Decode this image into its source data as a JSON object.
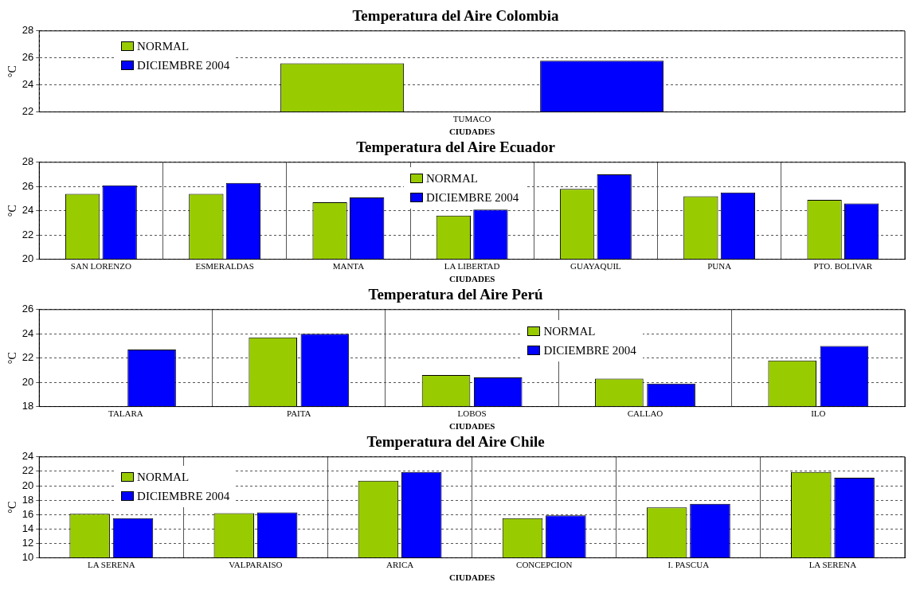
{
  "chart_data": [
    {
      "type": "bar",
      "title": "Temperatura del Aire Colombia",
      "xlabel": "CIUDADES",
      "ylabel": "°C",
      "categories": [
        "TUMACO"
      ],
      "series": [
        {
          "name": "NORMAL",
          "color": "#99cc00",
          "values": [
            25.6
          ]
        },
        {
          "name": "DICIEMBRE 2004",
          "color": "#0000ff",
          "values": [
            25.8
          ]
        }
      ],
      "ylim": [
        22,
        28
      ],
      "yticks": [
        22,
        24,
        26,
        28
      ],
      "grid": "y",
      "legend": "top left"
    },
    {
      "type": "bar",
      "title": "Temperatura del Aire Ecuador",
      "xlabel": "CIUDADES",
      "ylabel": "°C",
      "categories": [
        "SAN LORENZO",
        "ESMERALDAS",
        "MANTA",
        "LA LIBERTAD",
        "GUAYAQUIL",
        "PUNA",
        "PTO. BOLIVAR"
      ],
      "series": [
        {
          "name": "NORMAL",
          "color": "#99cc00",
          "values": [
            25.4,
            25.4,
            24.7,
            23.6,
            25.8,
            25.2,
            24.9
          ]
        },
        {
          "name": "DICIEMBRE 2004",
          "color": "#0000ff",
          "values": [
            26.1,
            26.3,
            25.1,
            24.1,
            27.0,
            25.5,
            24.6
          ]
        }
      ],
      "ylim": [
        20,
        28
      ],
      "yticks": [
        20,
        22,
        24,
        26,
        28
      ],
      "grid": true,
      "legend": "top"
    },
    {
      "type": "bar",
      "title": "Temperatura del Aire Perú",
      "xlabel": "CIUDADES",
      "ylabel": "°C",
      "categories": [
        "TALARA",
        "PAITA",
        "LOBOS",
        "CALLAO",
        "ILO"
      ],
      "series": [
        {
          "name": "NORMAL",
          "color": "#99cc00",
          "values": [
            null,
            23.7,
            20.6,
            20.3,
            21.8
          ]
        },
        {
          "name": "DICIEMBRE 2004",
          "color": "#0000ff",
          "values": [
            22.7,
            24.0,
            20.4,
            19.9,
            23.0
          ]
        }
      ],
      "ylim": [
        18,
        26
      ],
      "yticks": [
        18,
        20,
        22,
        24,
        26
      ],
      "grid": true,
      "legend": "top right"
    },
    {
      "type": "bar",
      "title": "Temperatura del Aire Chile",
      "xlabel": "CIUDADES",
      "ylabel": "°C",
      "categories": [
        "LA SERENA",
        "VALPARAISO",
        "ARICA",
        "CONCEPCION",
        "I. PASCUA",
        "LA SERENA"
      ],
      "series": [
        {
          "name": "NORMAL",
          "color": "#99cc00",
          "values": [
            16.1,
            16.2,
            20.7,
            15.5,
            17.0,
            21.9
          ]
        },
        {
          "name": "DICIEMBRE 2004",
          "color": "#0000ff",
          "values": [
            15.5,
            16.3,
            21.9,
            15.9,
            17.5,
            21.1
          ]
        }
      ],
      "ylim": [
        10,
        24
      ],
      "yticks": [
        10,
        12,
        14,
        16,
        18,
        20,
        22,
        24
      ],
      "grid": true,
      "legend": "top left"
    }
  ]
}
